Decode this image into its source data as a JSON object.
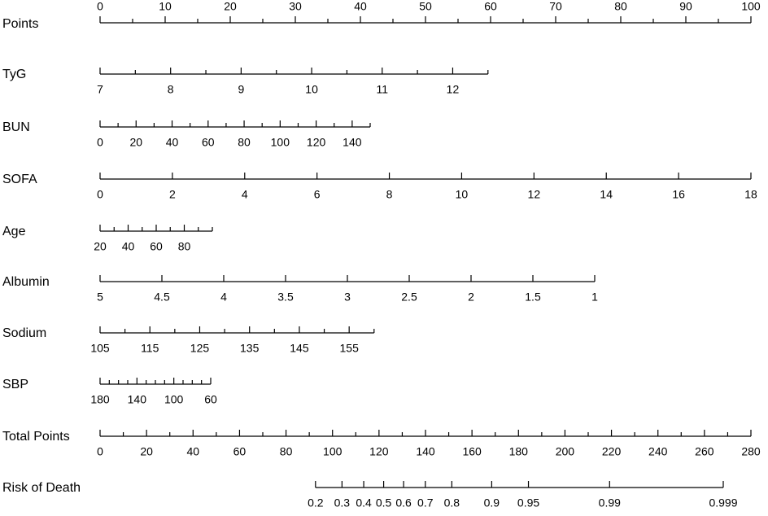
{
  "chart_data": {
    "type": "nomogram",
    "rows": [
      {
        "name": "Points",
        "lim": [
          0,
          100
        ],
        "points": [
          0,
          100
        ],
        "labels_above": true,
        "ticks": [
          0,
          10,
          20,
          30,
          40,
          50,
          60,
          70,
          80,
          90,
          100
        ],
        "minor_ticks": [
          5,
          15,
          25,
          35,
          45,
          55,
          65,
          75,
          85,
          95
        ]
      },
      {
        "name": "TyG",
        "lim": [
          7,
          12.5
        ],
        "points": [
          0,
          59.6
        ],
        "ticks": [
          7,
          8,
          9,
          10,
          11,
          12
        ],
        "minor_ticks": [
          7.5,
          8.5,
          9.5,
          10.5,
          11.5,
          12.5
        ]
      },
      {
        "name": "BUN",
        "lim": [
          0,
          150
        ],
        "points": [
          0,
          41.5
        ],
        "ticks": [
          0,
          20,
          40,
          60,
          80,
          100,
          120,
          140
        ],
        "minor_ticks": [
          10,
          30,
          50,
          70,
          90,
          110,
          130,
          150
        ]
      },
      {
        "name": "SOFA",
        "lim": [
          0,
          18
        ],
        "points": [
          0,
          100
        ],
        "ticks": [
          0,
          2,
          4,
          6,
          8,
          10,
          12,
          14,
          16,
          18
        ]
      },
      {
        "name": "Age",
        "lim": [
          20,
          100
        ],
        "points": [
          0,
          17.25
        ],
        "ticks": [
          20,
          40,
          60,
          80
        ],
        "minor_ticks": [
          30,
          50,
          70,
          90,
          100
        ]
      },
      {
        "name": "Albumin",
        "lim": [
          5,
          1
        ],
        "points": [
          0,
          76
        ],
        "ticks": [
          5,
          4.5,
          4,
          3.5,
          3,
          2.5,
          2,
          1.5,
          1
        ]
      },
      {
        "name": "Sodium",
        "lim": [
          105,
          160
        ],
        "points": [
          0,
          42.1
        ],
        "ticks": [
          105,
          115,
          125,
          135,
          145,
          155
        ],
        "minor_ticks": [
          110,
          120,
          130,
          140,
          150,
          160
        ]
      },
      {
        "name": "SBP",
        "lim": [
          180,
          60
        ],
        "points": [
          0,
          17
        ],
        "ticks": [
          180,
          140,
          100,
          60
        ],
        "minor_ticks": [
          170,
          160,
          150,
          130,
          120,
          110,
          90,
          80,
          70
        ]
      },
      {
        "name": "Total Points",
        "lim": [
          0,
          280
        ],
        "points": [
          0,
          100
        ],
        "ticks": [
          0,
          20,
          40,
          60,
          80,
          100,
          120,
          140,
          160,
          180,
          200,
          220,
          240,
          260,
          280
        ],
        "minor_ticks": [
          10,
          30,
          50,
          70,
          90,
          110,
          130,
          150,
          170,
          190,
          210,
          230,
          250,
          270
        ]
      },
      {
        "name": "Risk of Death",
        "lim": [
          0.2,
          0.999
        ],
        "points": [
          33.1,
          95.75
        ],
        "scale": "logit",
        "ticks": [
          0.2,
          0.3,
          0.4,
          0.5,
          0.6,
          0.7,
          0.8,
          0.9,
          0.95,
          0.99,
          0.999
        ]
      }
    ]
  }
}
